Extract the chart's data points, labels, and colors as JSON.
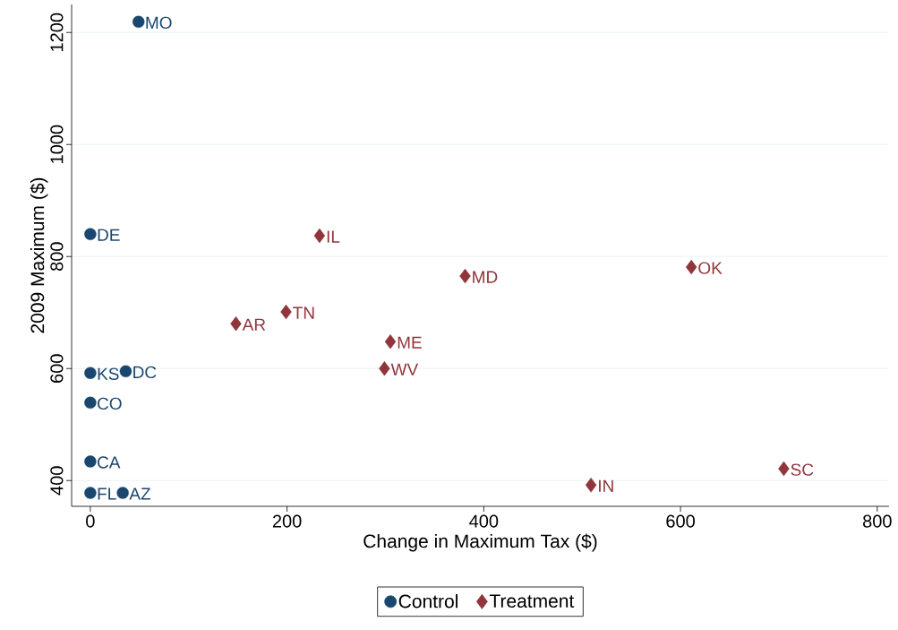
{
  "chart_data": {
    "type": "scatter",
    "xlabel": "Change in Maximum Tax ($)",
    "ylabel": "2009 Maximum ($)",
    "xlim": [
      -19,
      812
    ],
    "ylim": [
      354,
      1250
    ],
    "xticks": [
      0,
      200,
      400,
      600,
      800
    ],
    "yticks": [
      400,
      600,
      800,
      1000,
      1200
    ],
    "grid": "y",
    "legend": "bottom",
    "series": [
      {
        "name": "Control",
        "color": "#1a476f",
        "marker": "circle",
        "x": [
          49,
          0,
          0,
          36,
          0,
          0,
          0,
          33
        ],
        "values": [
          1219,
          840,
          592,
          595,
          539,
          434,
          378,
          378
        ]
      },
      {
        "name": "Treatment",
        "color": "#90353b",
        "marker": "diamond",
        "x": [
          233,
          381,
          611,
          148,
          199,
          305,
          299,
          509,
          705
        ],
        "values": [
          837,
          765,
          781,
          680,
          701,
          648,
          600,
          392,
          421
        ]
      }
    ],
    "annotations": [
      {
        "text": "MO",
        "x": 49,
        "y": 1219
      },
      {
        "text": "DE",
        "x": 0,
        "y": 840
      },
      {
        "text": "KS",
        "x": 0,
        "y": 592
      },
      {
        "text": "DC",
        "x": 36,
        "y": 595
      },
      {
        "text": "CO",
        "x": 0,
        "y": 539
      },
      {
        "text": "CA",
        "x": 0,
        "y": 434
      },
      {
        "text": "FL",
        "x": 0,
        "y": 378
      },
      {
        "text": "AZ",
        "x": 33,
        "y": 378
      },
      {
        "text": "IL",
        "x": 233,
        "y": 837
      },
      {
        "text": "MD",
        "x": 381,
        "y": 765
      },
      {
        "text": "OK",
        "x": 611,
        "y": 781
      },
      {
        "text": "AR",
        "x": 148,
        "y": 680
      },
      {
        "text": "TN",
        "x": 199,
        "y": 701
      },
      {
        "text": "ME",
        "x": 305,
        "y": 648
      },
      {
        "text": "WV",
        "x": 299,
        "y": 600
      },
      {
        "text": "IN",
        "x": 509,
        "y": 392
      },
      {
        "text": "SC",
        "x": 705,
        "y": 421
      }
    ]
  }
}
